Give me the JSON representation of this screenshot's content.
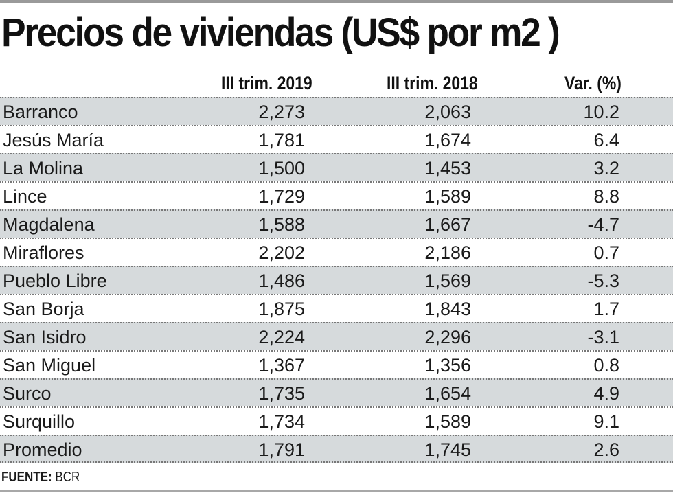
{
  "title": "Precios de viviendas (US$ por m2 )",
  "columns": [
    "III trim. 2019",
    "III trim. 2018",
    "Var. (%)"
  ],
  "rows": [
    {
      "district": "Barranco",
      "q3_2019": "2,273",
      "q3_2018": "2,063",
      "var": "10.2"
    },
    {
      "district": "Jesús María",
      "q3_2019": "1,781",
      "q3_2018": "1,674",
      "var": "6.4"
    },
    {
      "district": "La Molina",
      "q3_2019": "1,500",
      "q3_2018": "1,453",
      "var": "3.2"
    },
    {
      "district": "Lince",
      "q3_2019": "1,729",
      "q3_2018": "1,589",
      "var": "8.8"
    },
    {
      "district": "Magdalena",
      "q3_2019": "1,588",
      "q3_2018": "1,667",
      "var": "-4.7"
    },
    {
      "district": "Miraflores",
      "q3_2019": "2,202",
      "q3_2018": "2,186",
      "var": "0.7"
    },
    {
      "district": "Pueblo Libre",
      "q3_2019": "1,486",
      "q3_2018": "1,569",
      "var": "-5.3"
    },
    {
      "district": "San Borja",
      "q3_2019": "1,875",
      "q3_2018": "1,843",
      "var": "1.7"
    },
    {
      "district": "San Isidro",
      "q3_2019": "2,224",
      "q3_2018": "2,296",
      "var": "-3.1"
    },
    {
      "district": "San Miguel",
      "q3_2019": "1,367",
      "q3_2018": "1,356",
      "var": "0.8"
    },
    {
      "district": "Surco",
      "q3_2019": "1,735",
      "q3_2018": "1,654",
      "var": "4.9"
    },
    {
      "district": "Surquillo",
      "q3_2019": "1,734",
      "q3_2018": "1,589",
      "var": "9.1"
    },
    {
      "district": "Promedio",
      "q3_2019": "1,791",
      "q3_2018": "1,745",
      "var": "2.6"
    }
  ],
  "footer": {
    "label": "FUENTE:",
    "source": "BCR"
  },
  "colors": {
    "row_shade": "#d6dadc",
    "text": "#1a1a1a"
  }
}
